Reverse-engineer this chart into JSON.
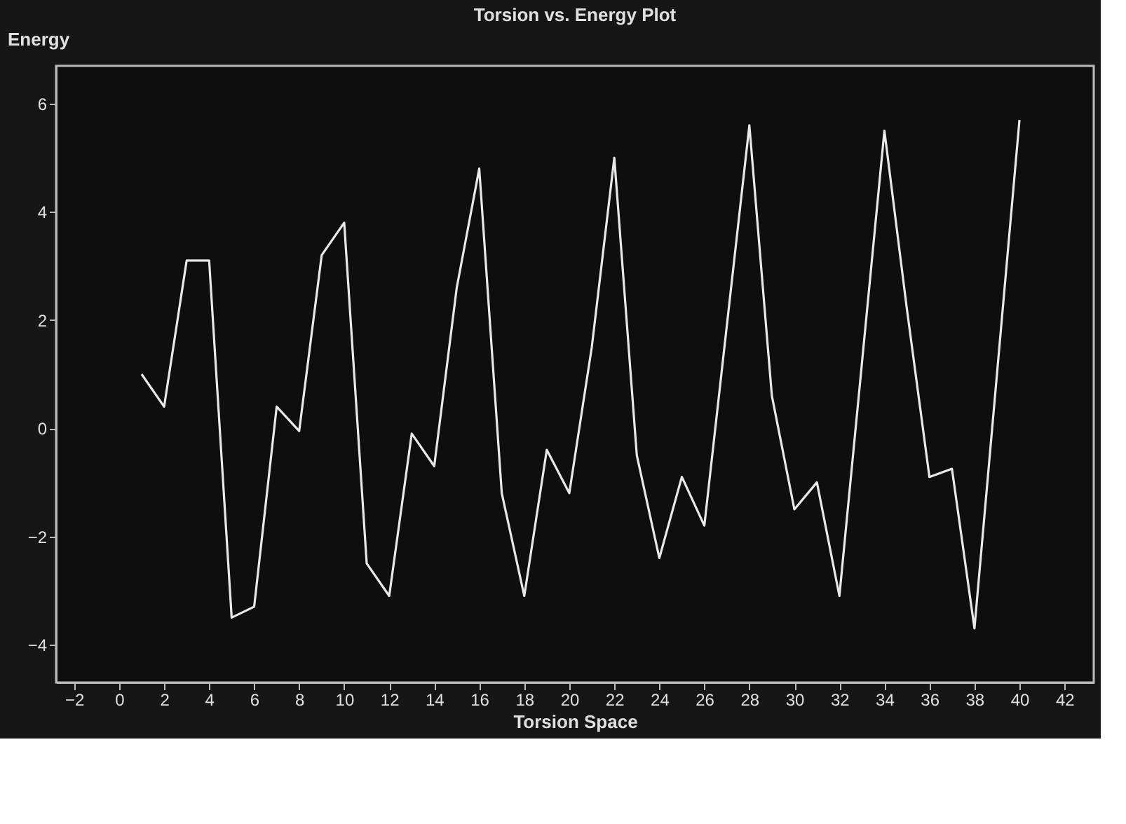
{
  "chart_data": {
    "type": "line",
    "title": "Torsion vs. Energy Plot",
    "xlabel": "Torsion Space",
    "ylabel": "Energy",
    "x": [
      1,
      2,
      3,
      4,
      5,
      6,
      7,
      8,
      9,
      10,
      11,
      12,
      13,
      14,
      15,
      16,
      17,
      18,
      19,
      20,
      21,
      22,
      23,
      24,
      25,
      26,
      27,
      28,
      29,
      30,
      31,
      32,
      33,
      34,
      35,
      36,
      37,
      38,
      39,
      40
    ],
    "series": [
      {
        "color": "#e8e8e8",
        "values": [
          1.0,
          0.4,
          3.1,
          3.1,
          -3.5,
          -3.3,
          0.4,
          -0.05,
          3.2,
          3.8,
          -2.5,
          -3.1,
          -0.1,
          -0.7,
          2.6,
          4.8,
          -1.2,
          -3.1,
          -0.4,
          -1.2,
          1.5,
          5.0,
          -0.5,
          -2.4,
          -0.9,
          -1.8,
          1.9,
          5.6,
          0.6,
          -1.5,
          -1.0,
          -3.1,
          1.2,
          5.5,
          2.2,
          -0.9,
          -0.75,
          -3.7,
          1.0,
          5.7
        ]
      }
    ],
    "xlim": [
      -2.8,
      43.3
    ],
    "xticks": [
      -2,
      0,
      2,
      4,
      6,
      8,
      10,
      12,
      14,
      16,
      18,
      20,
      22,
      24,
      26,
      28,
      30,
      32,
      34,
      36,
      38,
      40,
      42
    ],
    "ylim": [
      -4.7,
      6.7
    ],
    "yticks": [
      -4,
      -2,
      0,
      2,
      4,
      6
    ],
    "grid": false,
    "legend": false,
    "marker": "none",
    "line_style": "solid"
  }
}
